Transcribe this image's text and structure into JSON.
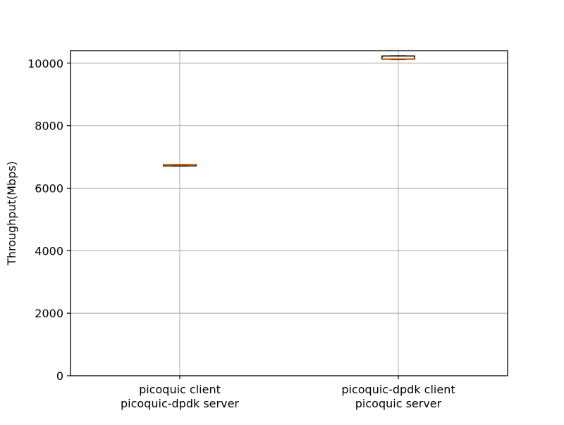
{
  "chart_data": {
    "type": "box",
    "title": "",
    "xlabel": "",
    "ylabel": "Throughput(Mbps)",
    "ylim": [
      0,
      10400
    ],
    "yticks": [
      0,
      2000,
      4000,
      6000,
      8000,
      10000
    ],
    "grid": true,
    "categories": [
      {
        "line1": "picoquic client",
        "line2": "picoquic-dpdk server"
      },
      {
        "line1": "picoquic-dpdk client",
        "line2": "picoquic server"
      }
    ],
    "boxes": [
      {
        "whisker_low": 6710,
        "q1": 6715,
        "median": 6745,
        "q3": 6755,
        "whisker_high": 6760
      },
      {
        "whisker_low": 10120,
        "q1": 10130,
        "median": 10140,
        "q3": 10230,
        "whisker_high": 10240
      }
    ],
    "colors": {
      "box": "#000000",
      "median": "#ff7f0e",
      "grid": "#b0b0b0",
      "frame": "#000000"
    }
  }
}
